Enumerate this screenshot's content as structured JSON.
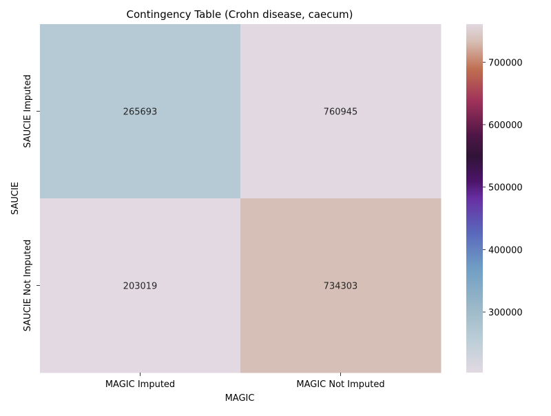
{
  "chart_data": {
    "type": "heatmap",
    "title": "Contingency Table (Crohn disease, caecum)",
    "xlabel": "MAGIC",
    "ylabel": "SAUCIE",
    "x_categories": [
      "MAGIC Imputed",
      "MAGIC Not Imputed"
    ],
    "y_categories": [
      "SAUCIE Imputed",
      "SAUCIE Not Imputed"
    ],
    "values": [
      [
        265693,
        760945
      ],
      [
        203019,
        734303
      ]
    ],
    "colormap": "twilight",
    "vmin": 203019,
    "vmax": 760945,
    "colorbar_ticks": [
      300000,
      400000,
      500000,
      600000,
      700000
    ],
    "colorbar_tick_labels": [
      "300000",
      "400000",
      "500000",
      "600000",
      "700000"
    ]
  }
}
